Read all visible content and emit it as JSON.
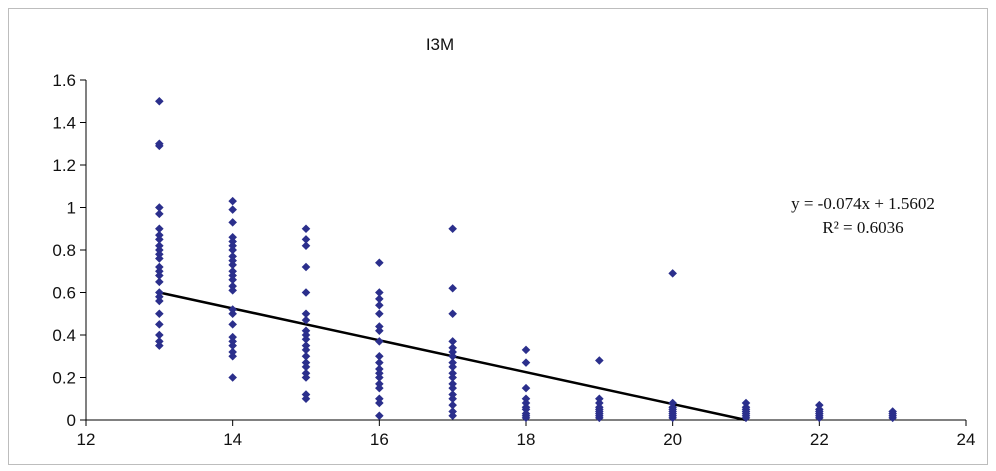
{
  "chart_data": {
    "type": "scatter",
    "title": "I3M",
    "xlabel": "",
    "ylabel": "",
    "xlim": [
      12,
      24
    ],
    "ylim": [
      0,
      1.6
    ],
    "xticks": [
      "12",
      "14",
      "16",
      "18",
      "20",
      "22",
      "24"
    ],
    "yticks": [
      "0",
      "0.2",
      "0.4",
      "0.6",
      "0.8",
      "1",
      "1.2",
      "1.4",
      "1.6"
    ],
    "grid": false,
    "marker_color": "#2b2f8c",
    "trendline_color": "#000000",
    "series": [
      {
        "points": [
          [
            13,
            1.5
          ],
          [
            13,
            1.3
          ],
          [
            13,
            1.29
          ],
          [
            13,
            1.0
          ],
          [
            13,
            0.97
          ],
          [
            13,
            0.9
          ],
          [
            13,
            0.87
          ],
          [
            13,
            0.85
          ],
          [
            13,
            0.82
          ],
          [
            13,
            0.8
          ],
          [
            13,
            0.78
          ],
          [
            13,
            0.76
          ],
          [
            13,
            0.72
          ],
          [
            13,
            0.7
          ],
          [
            13,
            0.68
          ],
          [
            13,
            0.65
          ],
          [
            13,
            0.6
          ],
          [
            13,
            0.58
          ],
          [
            13,
            0.56
          ],
          [
            13,
            0.5
          ],
          [
            13,
            0.45
          ],
          [
            13,
            0.4
          ],
          [
            13,
            0.37
          ],
          [
            13,
            0.35
          ],
          [
            14,
            1.03
          ],
          [
            14,
            0.99
          ],
          [
            14,
            0.93
          ],
          [
            14,
            0.86
          ],
          [
            14,
            0.84
          ],
          [
            14,
            0.82
          ],
          [
            14,
            0.8
          ],
          [
            14,
            0.77
          ],
          [
            14,
            0.75
          ],
          [
            14,
            0.73
          ],
          [
            14,
            0.7
          ],
          [
            14,
            0.68
          ],
          [
            14,
            0.66
          ],
          [
            14,
            0.63
          ],
          [
            14,
            0.61
          ],
          [
            14,
            0.52
          ],
          [
            14,
            0.5
          ],
          [
            14,
            0.45
          ],
          [
            14,
            0.39
          ],
          [
            14,
            0.37
          ],
          [
            14,
            0.35
          ],
          [
            14,
            0.32
          ],
          [
            14,
            0.3
          ],
          [
            14,
            0.2
          ],
          [
            15,
            0.9
          ],
          [
            15,
            0.85
          ],
          [
            15,
            0.82
          ],
          [
            15,
            0.72
          ],
          [
            15,
            0.6
          ],
          [
            15,
            0.5
          ],
          [
            15,
            0.47
          ],
          [
            15,
            0.42
          ],
          [
            15,
            0.4
          ],
          [
            15,
            0.38
          ],
          [
            15,
            0.35
          ],
          [
            15,
            0.33
          ],
          [
            15,
            0.3
          ],
          [
            15,
            0.27
          ],
          [
            15,
            0.25
          ],
          [
            15,
            0.22
          ],
          [
            15,
            0.2
          ],
          [
            15,
            0.12
          ],
          [
            15,
            0.1
          ],
          [
            16,
            0.74
          ],
          [
            16,
            0.6
          ],
          [
            16,
            0.57
          ],
          [
            16,
            0.54
          ],
          [
            16,
            0.5
          ],
          [
            16,
            0.44
          ],
          [
            16,
            0.42
          ],
          [
            16,
            0.37
          ],
          [
            16,
            0.3
          ],
          [
            16,
            0.27
          ],
          [
            16,
            0.24
          ],
          [
            16,
            0.22
          ],
          [
            16,
            0.2
          ],
          [
            16,
            0.17
          ],
          [
            16,
            0.15
          ],
          [
            16,
            0.1
          ],
          [
            16,
            0.08
          ],
          [
            16,
            0.02
          ],
          [
            17,
            0.9
          ],
          [
            17,
            0.62
          ],
          [
            17,
            0.5
          ],
          [
            17,
            0.37
          ],
          [
            17,
            0.34
          ],
          [
            17,
            0.32
          ],
          [
            17,
            0.3
          ],
          [
            17,
            0.27
          ],
          [
            17,
            0.25
          ],
          [
            17,
            0.22
          ],
          [
            17,
            0.2
          ],
          [
            17,
            0.17
          ],
          [
            17,
            0.15
          ],
          [
            17,
            0.12
          ],
          [
            17,
            0.1
          ],
          [
            17,
            0.07
          ],
          [
            17,
            0.04
          ],
          [
            17,
            0.02
          ],
          [
            18,
            0.33
          ],
          [
            18,
            0.27
          ],
          [
            18,
            0.15
          ],
          [
            18,
            0.1
          ],
          [
            18,
            0.08
          ],
          [
            18,
            0.06
          ],
          [
            18,
            0.05
          ],
          [
            18,
            0.03
          ],
          [
            18,
            0.02
          ],
          [
            18,
            0.01
          ],
          [
            19,
            0.28
          ],
          [
            19,
            0.1
          ],
          [
            19,
            0.08
          ],
          [
            19,
            0.06
          ],
          [
            19,
            0.05
          ],
          [
            19,
            0.04
          ],
          [
            19,
            0.03
          ],
          [
            19,
            0.02
          ],
          [
            19,
            0.01
          ],
          [
            20,
            0.69
          ],
          [
            20,
            0.08
          ],
          [
            20,
            0.06
          ],
          [
            20,
            0.05
          ],
          [
            20,
            0.04
          ],
          [
            20,
            0.03
          ],
          [
            20,
            0.02
          ],
          [
            20,
            0.01
          ],
          [
            21,
            0.08
          ],
          [
            21,
            0.06
          ],
          [
            21,
            0.05
          ],
          [
            21,
            0.04
          ],
          [
            21,
            0.03
          ],
          [
            21,
            0.02
          ],
          [
            21,
            0.01
          ],
          [
            22,
            0.07
          ],
          [
            22,
            0.05
          ],
          [
            22,
            0.04
          ],
          [
            22,
            0.03
          ],
          [
            22,
            0.02
          ],
          [
            22,
            0.01
          ],
          [
            23,
            0.04
          ],
          [
            23,
            0.03
          ],
          [
            23,
            0.02
          ],
          [
            23,
            0.01
          ]
        ]
      }
    ],
    "trendline": {
      "slope": -0.074,
      "intercept": 1.5602,
      "x_range": [
        13,
        21
      ],
      "y_at_start": 0.6,
      "y_at_end": 0.0
    },
    "annotations": {
      "equation": "y = -0.074x + 1.5602",
      "r_squared": "R² = 0.6036"
    }
  }
}
